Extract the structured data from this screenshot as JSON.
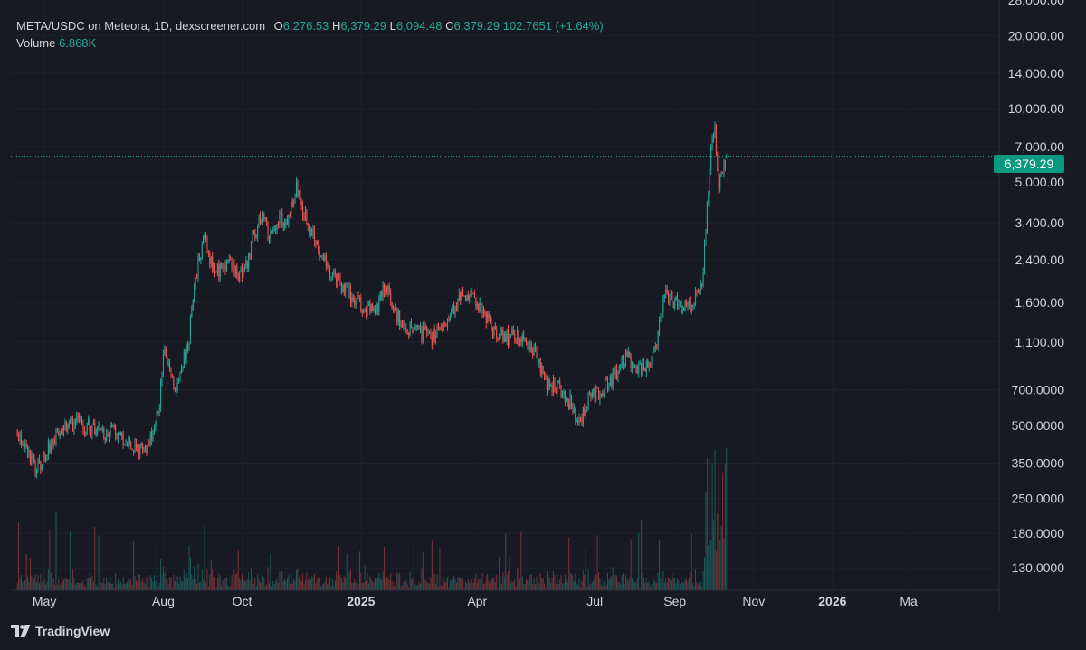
{
  "header": {
    "title": "META/USDC on Meteora, 1D, dexscreener.com",
    "open_label": "O",
    "open": "6,276.53",
    "high_label": "H",
    "high": "6,379.29",
    "low_label": "L",
    "low": "6,094.48",
    "close_label": "C",
    "close": "6,379.29",
    "change": "102.7651 (+1.64%)",
    "volume_label": "Volume",
    "volume": "6.868K"
  },
  "last_price_tag": "6,379.29",
  "footer": {
    "brand": "TradingView"
  },
  "colors": {
    "background": "#171a23",
    "up": "#26a69a",
    "down": "#ef5350",
    "price_tag": "#089981",
    "grid": "#2a2e39",
    "text": "#d1d4dc"
  },
  "chart_data": {
    "type": "candlestick",
    "scale": "log",
    "interval": "1D",
    "x_range": [
      "2024-04-05",
      "2026-05-10"
    ],
    "y_range": [
      105,
      28000
    ],
    "y_ticks": [
      "28,000.00",
      "20,000.00",
      "14,000.00",
      "10,000.00",
      "7,000.00",
      "5,000.00",
      "3,400.00",
      "2,400.00",
      "1,600.00",
      "1,100.00",
      "700.0000",
      "500.0000",
      "350.0000",
      "250.0000",
      "180.0000",
      "130.0000"
    ],
    "x_ticks": [
      {
        "label": "May",
        "date": "2024-05-01"
      },
      {
        "label": "Aug",
        "date": "2024-08-01"
      },
      {
        "label": "Oct",
        "date": "2024-10-01"
      },
      {
        "label": "2025",
        "date": "2025-01-01"
      },
      {
        "label": "Apr",
        "date": "2025-04-01"
      },
      {
        "label": "Jul",
        "date": "2025-07-01"
      },
      {
        "label": "Sep",
        "date": "2025-09-01"
      },
      {
        "label": "Nov",
        "date": "2025-11-01"
      },
      {
        "label": "2026",
        "date": "2026-01-01"
      },
      {
        "label": "Ma",
        "date": "2026-03-01"
      }
    ],
    "last_price": 6379.29,
    "price_path": [
      {
        "date": "2024-04-10",
        "close": 480
      },
      {
        "date": "2024-04-18",
        "close": 400
      },
      {
        "date": "2024-04-24",
        "close": 330
      },
      {
        "date": "2024-05-02",
        "close": 380
      },
      {
        "date": "2024-05-12",
        "close": 470
      },
      {
        "date": "2024-05-25",
        "close": 520
      },
      {
        "date": "2024-06-10",
        "close": 480
      },
      {
        "date": "2024-06-25",
        "close": 460
      },
      {
        "date": "2024-07-08",
        "close": 400
      },
      {
        "date": "2024-07-20",
        "close": 410
      },
      {
        "date": "2024-07-28",
        "close": 560
      },
      {
        "date": "2024-08-02",
        "close": 1050
      },
      {
        "date": "2024-08-10",
        "close": 700
      },
      {
        "date": "2024-08-20",
        "close": 1050
      },
      {
        "date": "2024-08-28",
        "close": 2400
      },
      {
        "date": "2024-09-02",
        "close": 2850
      },
      {
        "date": "2024-09-10",
        "close": 2100
      },
      {
        "date": "2024-09-20",
        "close": 2350
      },
      {
        "date": "2024-09-28",
        "close": 2050
      },
      {
        "date": "2024-10-05",
        "close": 2400
      },
      {
        "date": "2024-10-15",
        "close": 3700
      },
      {
        "date": "2024-10-22",
        "close": 3000
      },
      {
        "date": "2024-10-30",
        "close": 3700
      },
      {
        "date": "2024-11-05",
        "close": 3300
      },
      {
        "date": "2024-11-12",
        "close": 4700
      },
      {
        "date": "2024-11-20",
        "close": 3500
      },
      {
        "date": "2024-11-28",
        "close": 2700
      },
      {
        "date": "2024-12-08",
        "close": 2100
      },
      {
        "date": "2024-12-20",
        "close": 1800
      },
      {
        "date": "2025-01-02",
        "close": 1550
      },
      {
        "date": "2025-01-12",
        "close": 1450
      },
      {
        "date": "2025-01-20",
        "close": 1900
      },
      {
        "date": "2025-01-28",
        "close": 1400
      },
      {
        "date": "2025-02-10",
        "close": 1250
      },
      {
        "date": "2025-02-25",
        "close": 1150
      },
      {
        "date": "2025-03-10",
        "close": 1350
      },
      {
        "date": "2025-03-20",
        "close": 1800
      },
      {
        "date": "2025-04-01",
        "close": 1600
      },
      {
        "date": "2025-04-12",
        "close": 1250
      },
      {
        "date": "2025-04-25",
        "close": 1150
      },
      {
        "date": "2025-05-05",
        "close": 1150
      },
      {
        "date": "2025-05-15",
        "close": 1000
      },
      {
        "date": "2025-05-25",
        "close": 750
      },
      {
        "date": "2025-06-05",
        "close": 700
      },
      {
        "date": "2025-06-12",
        "close": 620
      },
      {
        "date": "2025-06-18",
        "close": 480
      },
      {
        "date": "2025-06-25",
        "close": 620
      },
      {
        "date": "2025-07-05",
        "close": 700
      },
      {
        "date": "2025-07-15",
        "close": 800
      },
      {
        "date": "2025-07-25",
        "close": 950
      },
      {
        "date": "2025-08-05",
        "close": 850
      },
      {
        "date": "2025-08-12",
        "close": 900
      },
      {
        "date": "2025-08-18",
        "close": 1150
      },
      {
        "date": "2025-08-25",
        "close": 1750
      },
      {
        "date": "2025-09-05",
        "close": 1550
      },
      {
        "date": "2025-09-15",
        "close": 1600
      },
      {
        "date": "2025-09-22",
        "close": 1900
      },
      {
        "date": "2025-09-26",
        "close": 4000
      },
      {
        "date": "2025-09-29",
        "close": 6500
      },
      {
        "date": "2025-10-02",
        "close": 8000
      },
      {
        "date": "2025-10-05",
        "close": 5000
      },
      {
        "date": "2025-10-08",
        "close": 5800
      },
      {
        "date": "2025-10-11",
        "close": 6379
      }
    ]
  }
}
